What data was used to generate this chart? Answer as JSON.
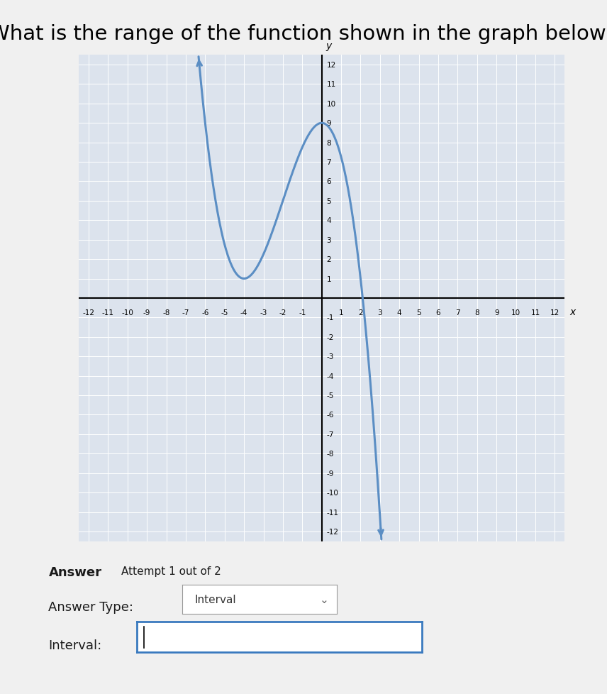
{
  "title": "What is the range of the function shown in the graph below?",
  "title_fontsize": 21,
  "background_color": "#f0f0f0",
  "plot_bg_color": "#dce3ed",
  "grid_color": "#ffffff",
  "curve_color": "#5b8ec4",
  "curve_linewidth": 2.2,
  "xlim": [
    -12.5,
    12.5
  ],
  "ylim": [
    -12.5,
    12.5
  ],
  "xmin": -12,
  "xmax": 12,
  "ymin": -12,
  "ymax": 12,
  "answer_label": "Answer",
  "attempt_label": "Attempt 1 out of 2",
  "answer_type_label": "Answer Type:",
  "answer_type_value": "Interval",
  "interval_label": "Interval:",
  "cubic_a": -0.25,
  "cubic_b": -1.5,
  "cubic_c": 0.0,
  "cubic_d": 9.0
}
